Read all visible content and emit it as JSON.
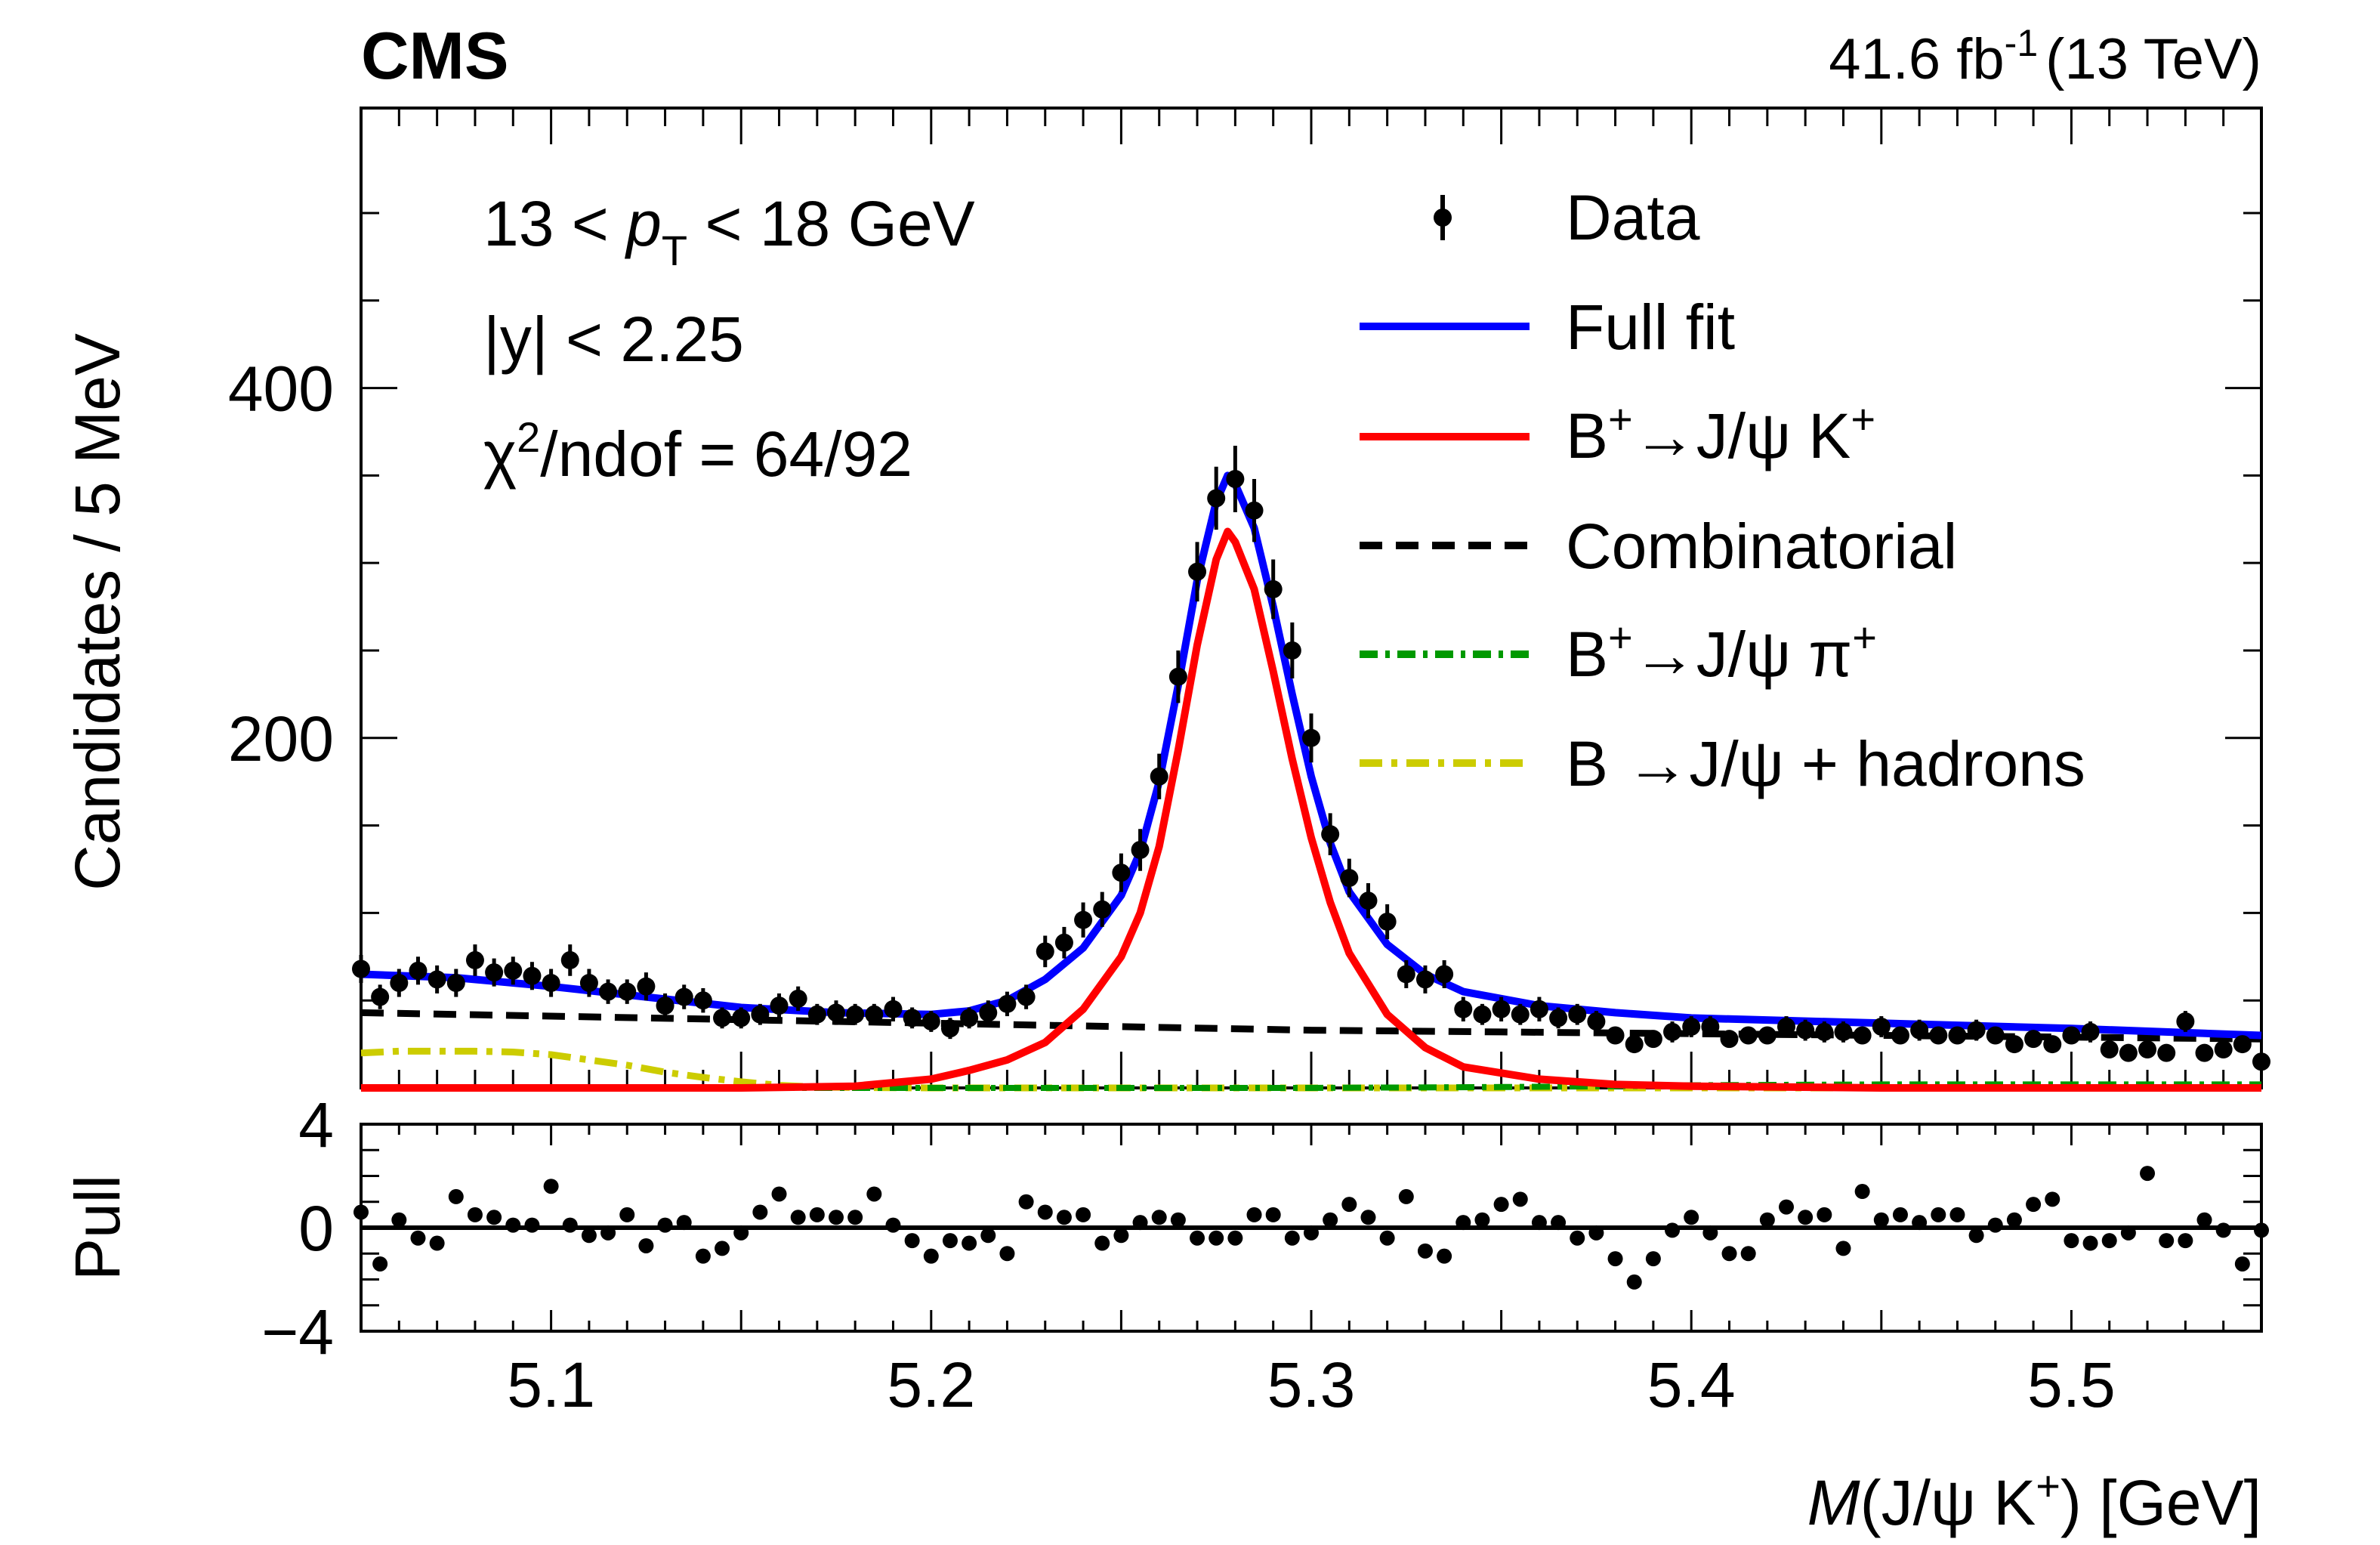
{
  "header": {
    "experiment": "CMS",
    "lumi_value": "41.6 fb",
    "lumi_exp": "-1",
    "energy": "(13 TeV)"
  },
  "cuts": {
    "pt_left": "13 < ",
    "pt_var": "p",
    "pt_sub": "T",
    "pt_right": " < 18 GeV",
    "rapidity": "|y| < 2.25",
    "chi_symbol": "χ",
    "chi_exp": "2",
    "chi_rest": "/ndof = 64/92"
  },
  "legend": {
    "data": "Data",
    "full_fit": "Full fit",
    "signal_a": "B",
    "signal_a_sup": "+",
    "signal_b": "→J/ψ K",
    "signal_b_sup": "+",
    "combinatorial": "Combinatorial",
    "pion_a": "B",
    "pion_a_sup": "+",
    "pion_b": "→J/ψ π",
    "pion_b_sup": "+",
    "hadrons": "B →J/ψ + hadrons"
  },
  "axes": {
    "ylabel": "Candidates / 5 MeV",
    "pull_label": "Pull",
    "xlabel_var": "M",
    "xlabel_rest": "(J/ψ K",
    "xlabel_sup": "+",
    "xlabel_end": ") [GeV]"
  },
  "colors": {
    "full_fit": "#0000ff",
    "signal": "#ff0000",
    "combinatorial": "#000000",
    "pion": "#009900",
    "hadrons": "#cccc00",
    "data": "#000000"
  },
  "chart_data": [
    {
      "type": "scatter",
      "title": "",
      "xlabel": "M(J/ψ K+) [GeV]",
      "ylabel": "Candidates / 5 MeV",
      "xlim": [
        5.05,
        5.55
      ],
      "ylim": [
        0,
        560
      ],
      "xticks": [
        5.1,
        5.2,
        5.3,
        5.4,
        5.5
      ],
      "xtick_labels": [
        "5.1",
        "5.2",
        "5.3",
        "5.4",
        "5.5"
      ],
      "yticks": [
        200,
        400
      ],
      "ytick_labels": [
        "200",
        "400"
      ],
      "series": [
        {
          "name": "Data",
          "style": "points with error bars",
          "x": [
            5.05,
            5.055,
            5.06,
            5.065,
            5.07,
            5.075,
            5.08,
            5.085,
            5.09,
            5.095,
            5.1,
            5.105,
            5.11,
            5.115,
            5.12,
            5.125,
            5.13,
            5.135,
            5.14,
            5.145,
            5.15,
            5.155,
            5.16,
            5.165,
            5.17,
            5.175,
            5.18,
            5.185,
            5.19,
            5.195,
            5.2,
            5.205,
            5.21,
            5.215,
            5.22,
            5.225,
            5.23,
            5.235,
            5.24,
            5.245,
            5.25,
            5.255,
            5.26,
            5.265,
            5.27,
            5.275,
            5.28,
            5.285,
            5.29,
            5.295,
            5.3,
            5.305,
            5.31,
            5.315,
            5.32,
            5.325,
            5.33,
            5.335,
            5.34,
            5.345,
            5.35,
            5.355,
            5.36,
            5.365,
            5.37,
            5.375,
            5.38,
            5.385,
            5.39,
            5.395,
            5.4,
            5.405,
            5.41,
            5.415,
            5.42,
            5.425,
            5.43,
            5.435,
            5.44,
            5.445,
            5.45,
            5.455,
            5.46,
            5.465,
            5.47,
            5.475,
            5.48,
            5.485,
            5.49,
            5.495,
            5.5,
            5.505,
            5.51,
            5.515,
            5.52,
            5.525,
            5.53,
            5.535,
            5.54,
            5.545,
            5.55
          ],
          "y": [
            68,
            52,
            60,
            67,
            62,
            60,
            73,
            66,
            67,
            64,
            60,
            73,
            60,
            55,
            55,
            58,
            47,
            52,
            50,
            40,
            40,
            42,
            47,
            51,
            42,
            43,
            42,
            42,
            45,
            40,
            38,
            34,
            40,
            43,
            48,
            52,
            78,
            83,
            96,
            102,
            123,
            136,
            178,
            235,
            295,
            337,
            348,
            330,
            285,
            250,
            200,
            145,
            120,
            107,
            95,
            65,
            62,
            65,
            45,
            42,
            45,
            42,
            45,
            40,
            42,
            38,
            30,
            25,
            28,
            32,
            35,
            35,
            28,
            30,
            30,
            35,
            33,
            32,
            32,
            30,
            35,
            30,
            33,
            30,
            30,
            33,
            30,
            25,
            28,
            25,
            30,
            32,
            22,
            20,
            22,
            20,
            38,
            20,
            22,
            25,
            15
          ],
          "yerr": [
            8,
            7,
            8,
            8,
            8,
            8,
            9,
            8,
            8,
            8,
            8,
            9,
            8,
            7,
            7,
            8,
            7,
            7,
            7,
            6,
            6,
            6,
            7,
            7,
            6,
            7,
            6,
            6,
            7,
            6,
            6,
            6,
            6,
            7,
            7,
            7,
            9,
            9,
            10,
            10,
            11,
            12,
            13,
            15,
            17,
            18,
            19,
            18,
            17,
            16,
            14,
            12,
            11,
            10,
            10,
            8,
            8,
            8,
            7,
            6,
            7,
            6,
            7,
            6,
            6,
            6,
            5,
            5,
            5,
            6,
            6,
            6,
            5,
            5,
            5,
            6,
            6,
            6,
            6,
            5,
            6,
            5,
            6,
            5,
            5,
            6,
            5,
            5,
            5,
            5,
            5,
            6,
            5,
            4,
            5,
            4,
            6,
            4,
            5,
            5,
            4
          ]
        },
        {
          "name": "Full fit",
          "style": "solid blue",
          "x": [
            5.05,
            5.075,
            5.1,
            5.125,
            5.15,
            5.175,
            5.2,
            5.21,
            5.22,
            5.23,
            5.24,
            5.25,
            5.255,
            5.26,
            5.265,
            5.27,
            5.275,
            5.278,
            5.28,
            5.285,
            5.29,
            5.295,
            5.3,
            5.305,
            5.31,
            5.32,
            5.33,
            5.34,
            5.36,
            5.38,
            5.4,
            5.45,
            5.5,
            5.55
          ],
          "y": [
            65,
            63,
            58,
            52,
            46,
            43,
            42,
            44,
            50,
            62,
            80,
            110,
            135,
            175,
            230,
            290,
            335,
            350,
            345,
            320,
            275,
            225,
            178,
            140,
            112,
            82,
            65,
            55,
            47,
            43,
            40,
            37,
            34,
            30
          ]
        },
        {
          "name": "B+→J/ψ K+",
          "style": "solid red",
          "x": [
            5.05,
            5.1,
            5.15,
            5.18,
            5.2,
            5.21,
            5.22,
            5.23,
            5.24,
            5.25,
            5.255,
            5.26,
            5.265,
            5.27,
            5.275,
            5.278,
            5.28,
            5.285,
            5.29,
            5.295,
            5.3,
            5.305,
            5.31,
            5.32,
            5.33,
            5.34,
            5.36,
            5.38,
            5.4,
            5.45,
            5.5,
            5.55
          ],
          "y": [
            0,
            0,
            0,
            1,
            5,
            10,
            16,
            26,
            45,
            75,
            100,
            138,
            193,
            253,
            302,
            318,
            312,
            285,
            238,
            188,
            143,
            106,
            77,
            42,
            23,
            12,
            5,
            2,
            1,
            0,
            0,
            0
          ]
        },
        {
          "name": "Combinatorial",
          "style": "dashed black",
          "x": [
            5.05,
            5.1,
            5.15,
            5.2,
            5.25,
            5.3,
            5.35,
            5.4,
            5.45,
            5.5,
            5.55
          ],
          "y": [
            43,
            41,
            39,
            37,
            35,
            33,
            32,
            31,
            30,
            29,
            28
          ]
        },
        {
          "name": "B+→J/ψ π+",
          "style": "dash-dot green",
          "x": [
            5.05,
            5.2,
            5.3,
            5.35,
            5.38,
            5.4,
            5.45,
            5.5,
            5.55
          ],
          "y": [
            0,
            0,
            0,
            0.5,
            1,
            1.5,
            2,
            2,
            2
          ]
        },
        {
          "name": "B →J/ψ + hadrons",
          "style": "dash-dot yellow",
          "x": [
            5.05,
            5.06,
            5.07,
            5.08,
            5.09,
            5.1,
            5.11,
            5.12,
            5.13,
            5.14,
            5.15,
            5.16,
            5.17,
            5.18,
            5.2,
            5.3,
            5.4,
            5.55
          ],
          "y": [
            20,
            21,
            21,
            21,
            20.5,
            19,
            16,
            13,
            9,
            6,
            3.5,
            1.5,
            0.5,
            0.2,
            0,
            0,
            0,
            0
          ]
        }
      ]
    },
    {
      "type": "scatter",
      "title": "Pull",
      "xlabel": "M(J/ψ K+) [GeV]",
      "ylabel": "Pull",
      "xlim": [
        5.05,
        5.55
      ],
      "ylim": [
        -4,
        4
      ],
      "yticks": [
        -4,
        0,
        4
      ],
      "ytick_labels": [
        "−4",
        "0",
        "4"
      ],
      "series": [
        {
          "name": "Pull",
          "x": [
            5.05,
            5.055,
            5.06,
            5.065,
            5.07,
            5.075,
            5.08,
            5.085,
            5.09,
            5.095,
            5.1,
            5.105,
            5.11,
            5.115,
            5.12,
            5.125,
            5.13,
            5.135,
            5.14,
            5.145,
            5.15,
            5.155,
            5.16,
            5.165,
            5.17,
            5.175,
            5.18,
            5.185,
            5.19,
            5.195,
            5.2,
            5.205,
            5.21,
            5.215,
            5.22,
            5.225,
            5.23,
            5.235,
            5.24,
            5.245,
            5.25,
            5.255,
            5.26,
            5.265,
            5.27,
            5.275,
            5.28,
            5.285,
            5.29,
            5.295,
            5.3,
            5.305,
            5.31,
            5.315,
            5.32,
            5.325,
            5.33,
            5.335,
            5.34,
            5.345,
            5.35,
            5.355,
            5.36,
            5.365,
            5.37,
            5.375,
            5.38,
            5.385,
            5.39,
            5.395,
            5.4,
            5.405,
            5.41,
            5.415,
            5.42,
            5.425,
            5.43,
            5.435,
            5.44,
            5.445,
            5.45,
            5.455,
            5.46,
            5.465,
            5.47,
            5.475,
            5.48,
            5.485,
            5.49,
            5.495,
            5.5,
            5.505,
            5.51,
            5.515,
            5.52,
            5.525,
            5.53,
            5.535,
            5.54,
            5.545,
            5.55
          ],
          "y": [
            0.6,
            -1.4,
            0.3,
            -0.4,
            -0.6,
            1.2,
            0.5,
            0.4,
            0.1,
            0.1,
            1.6,
            0.1,
            -0.3,
            -0.2,
            0.5,
            -0.7,
            0.1,
            0.2,
            -1.1,
            -0.8,
            -0.2,
            0.6,
            1.3,
            0.4,
            0.5,
            0.4,
            0.4,
            1.3,
            0.1,
            -0.5,
            -1.1,
            -0.5,
            -0.6,
            -0.3,
            -1.0,
            1.0,
            0.6,
            0.4,
            0.5,
            -0.6,
            -0.3,
            0.2,
            0.4,
            0.3,
            -0.4,
            -0.4,
            -0.4,
            0.5,
            0.5,
            -0.4,
            -0.2,
            0.3,
            0.9,
            0.4,
            -0.4,
            1.2,
            -0.9,
            -1.1,
            0.2,
            0.3,
            0.9,
            1.1,
            0.2,
            0.2,
            -0.4,
            -0.2,
            -1.2,
            -2.1,
            -1.2,
            -0.1,
            0.4,
            -0.2,
            -1.0,
            -1.0,
            0.3,
            0.8,
            0.4,
            0.5,
            -0.8,
            1.4,
            0.3,
            0.5,
            0.2,
            0.5,
            0.5,
            -0.3,
            0.1,
            0.3,
            0.9,
            1.1,
            -0.5,
            -0.6,
            -0.5,
            -0.2,
            2.1,
            -0.5,
            -0.5,
            0.3,
            -0.1,
            -1.4,
            -0.1
          ]
        }
      ]
    }
  ]
}
